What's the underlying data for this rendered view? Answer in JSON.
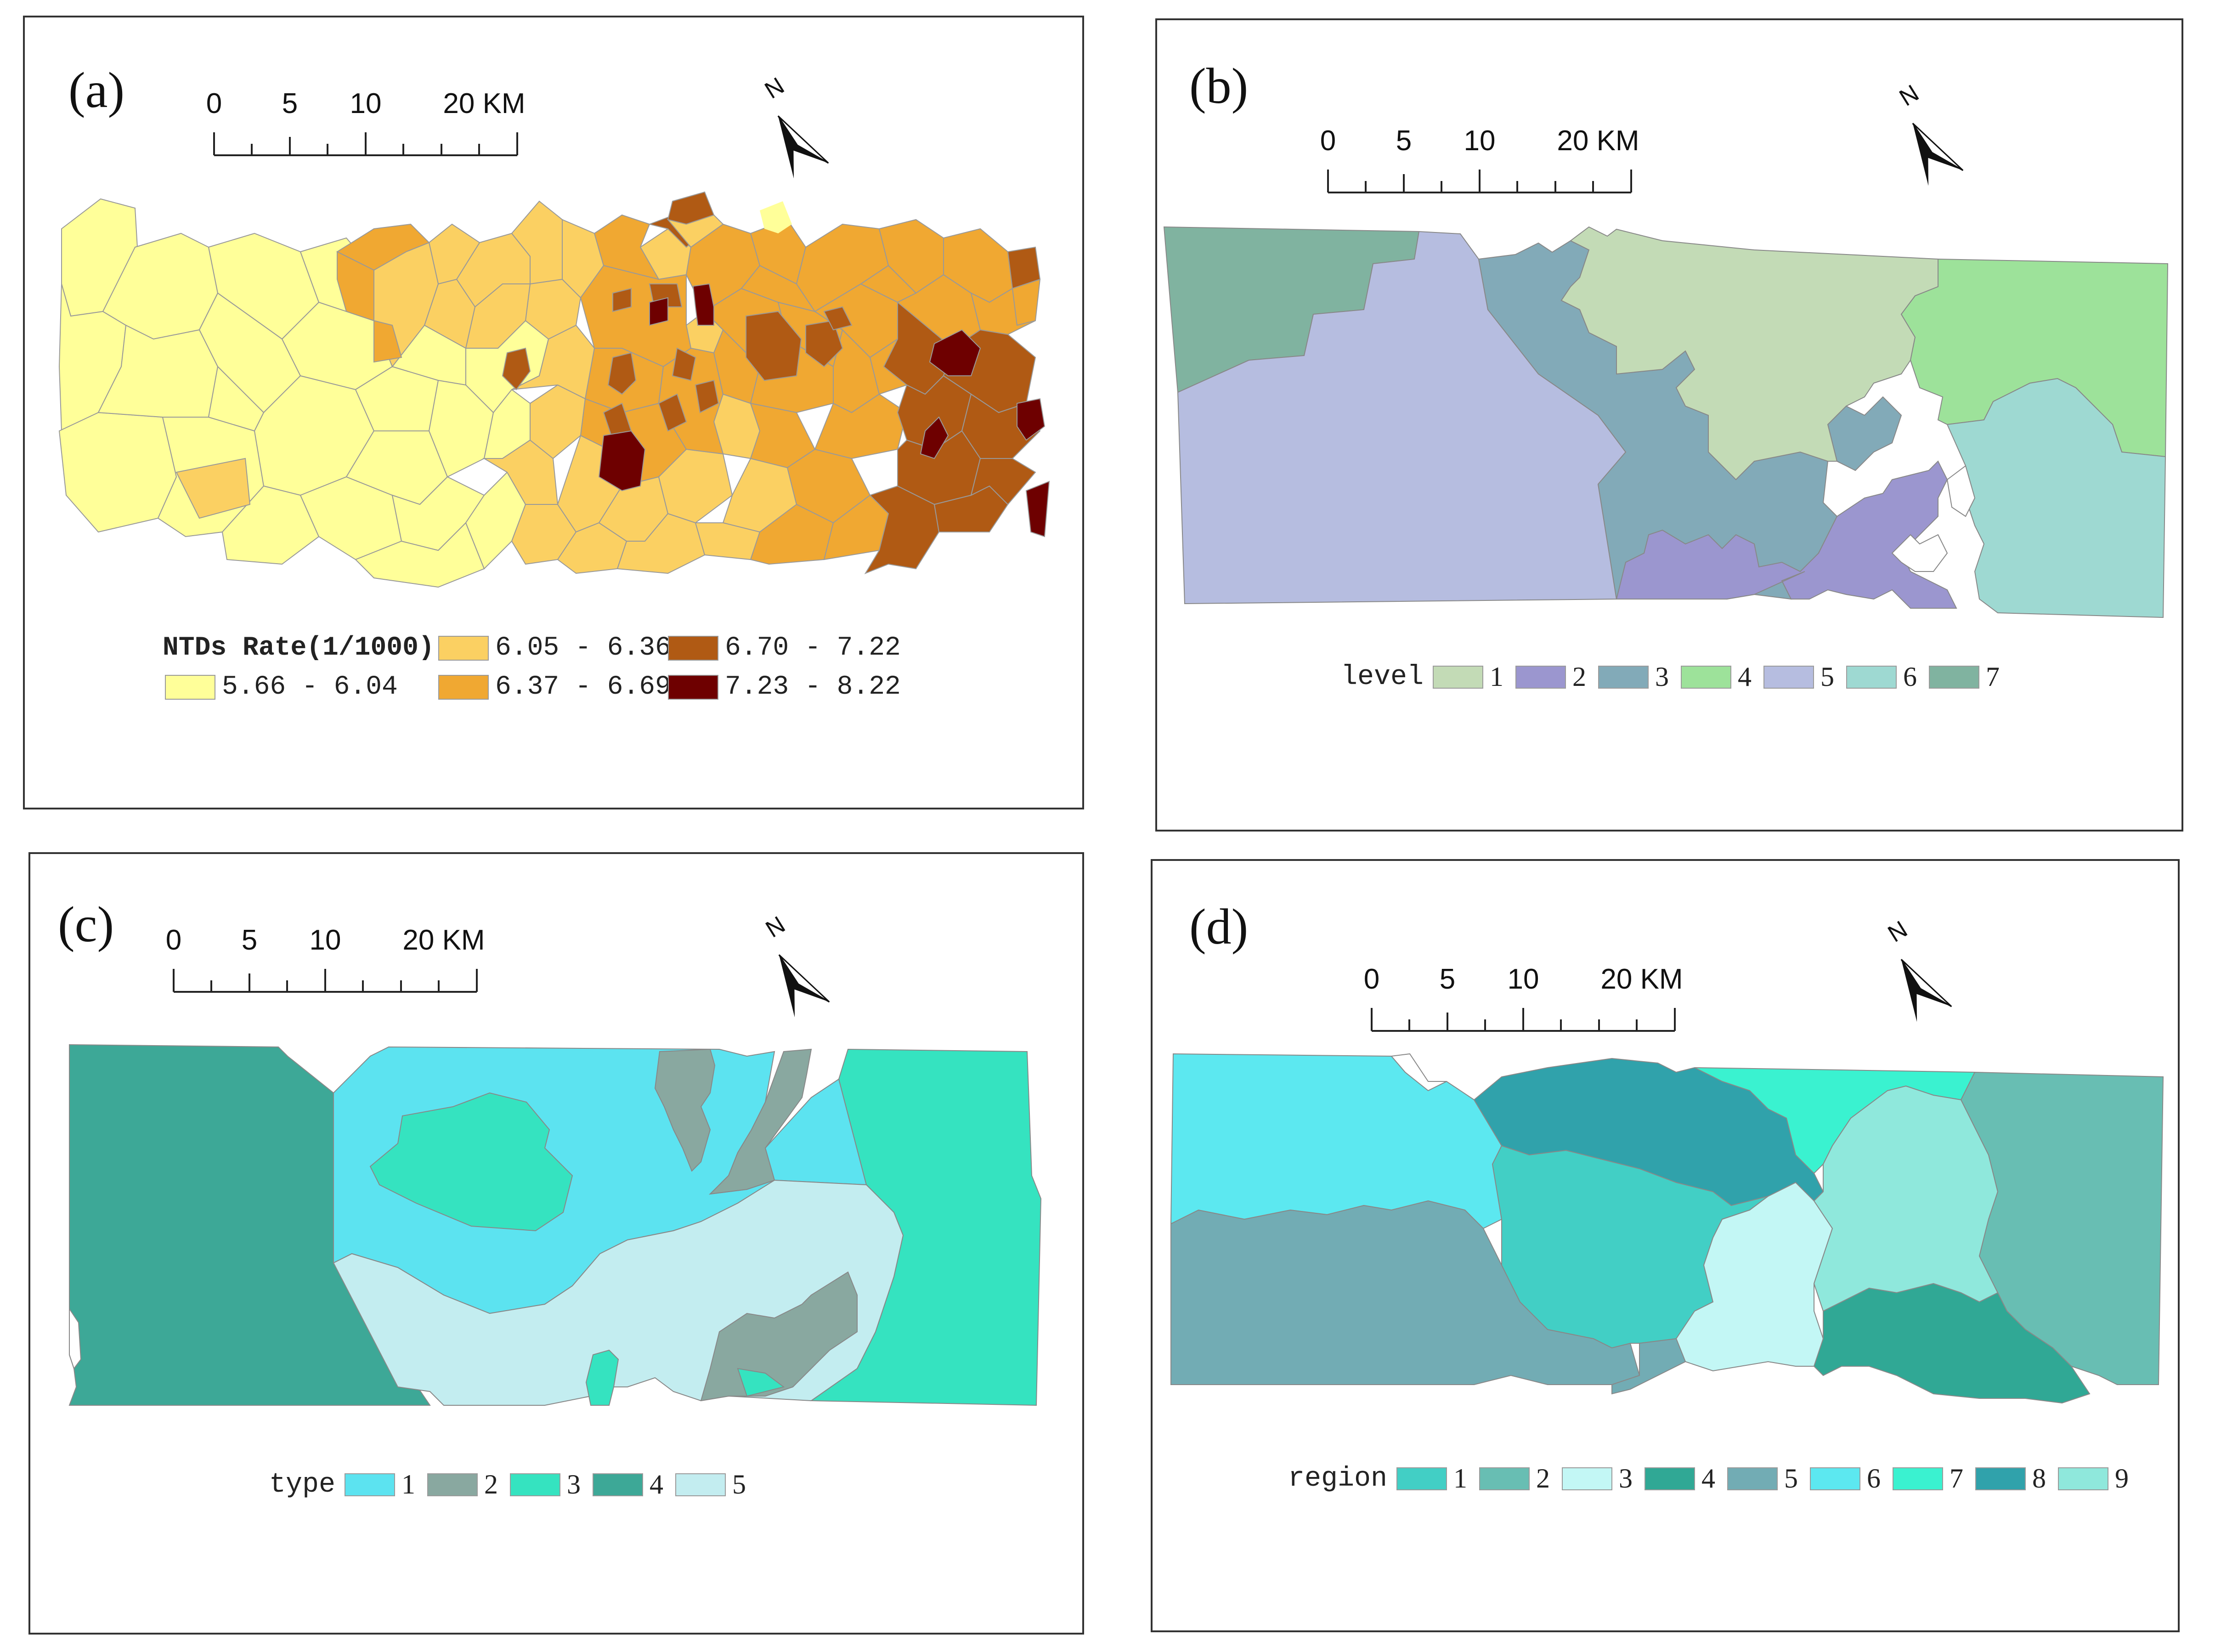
{
  "panels": {
    "a": {
      "label": "(a)",
      "scale": {
        "t0": "0",
        "t5": "5",
        "t10": "10",
        "t20": "20 KM"
      },
      "north": "N",
      "legend_title": "NTDs Rate(1/1000)",
      "classes": [
        {
          "range": "5.66 - 6.04",
          "color": "#FFFF99"
        },
        {
          "range": "6.05 - 6.36",
          "color": "#FBD062"
        },
        {
          "range": "6.37 - 6.69",
          "color": "#F0A832"
        },
        {
          "range": "6.70 - 7.22",
          "color": "#B05A14"
        },
        {
          "range": "7.23 - 8.22",
          "color": "#6E0000"
        }
      ]
    },
    "b": {
      "label": "(b)",
      "scale": {
        "t0": "0",
        "t5": "5",
        "t10": "10",
        "t20": "20 KM"
      },
      "north": "N",
      "legend_title": "level",
      "classes": [
        {
          "value": "1",
          "color": "#C3DBB6"
        },
        {
          "value": "2",
          "color": "#9B96CF"
        },
        {
          "value": "3",
          "color": "#82AAB8"
        },
        {
          "value": "4",
          "color": "#9DE29A"
        },
        {
          "value": "5",
          "color": "#B6BDE0"
        },
        {
          "value": "6",
          "color": "#9ED9D2"
        },
        {
          "value": "7",
          "color": "#80B3A0"
        }
      ]
    },
    "c": {
      "label": "(c)",
      "scale": {
        "t0": "0",
        "t5": "5",
        "t10": "10",
        "t20": "20 KM"
      },
      "north": "N",
      "legend_title": "type",
      "classes": [
        {
          "value": "1",
          "color": "#5CE3F0"
        },
        {
          "value": "2",
          "color": "#89A8A0"
        },
        {
          "value": "3",
          "color": "#35E3C0"
        },
        {
          "value": "4",
          "color": "#3DA897"
        },
        {
          "value": "5",
          "color": "#C3EDF0"
        }
      ]
    },
    "d": {
      "label": "(d)",
      "scale": {
        "t0": "0",
        "t5": "5",
        "t10": "10",
        "t20": "20 KM"
      },
      "north": "N",
      "legend_title": "region",
      "classes": [
        {
          "value": "1",
          "color": "#42CFC5"
        },
        {
          "value": "2",
          "color": "#68BEB3"
        },
        {
          "value": "3",
          "color": "#C3F7F5"
        },
        {
          "value": "4",
          "color": "#30A895"
        },
        {
          "value": "5",
          "color": "#72ACB4"
        },
        {
          "value": "6",
          "color": "#5CE8F0"
        },
        {
          "value": "7",
          "color": "#3AF2D0"
        },
        {
          "value": "8",
          "color": "#30A2AB"
        },
        {
          "value": "9",
          "color": "#8FE8DC"
        }
      ]
    }
  }
}
